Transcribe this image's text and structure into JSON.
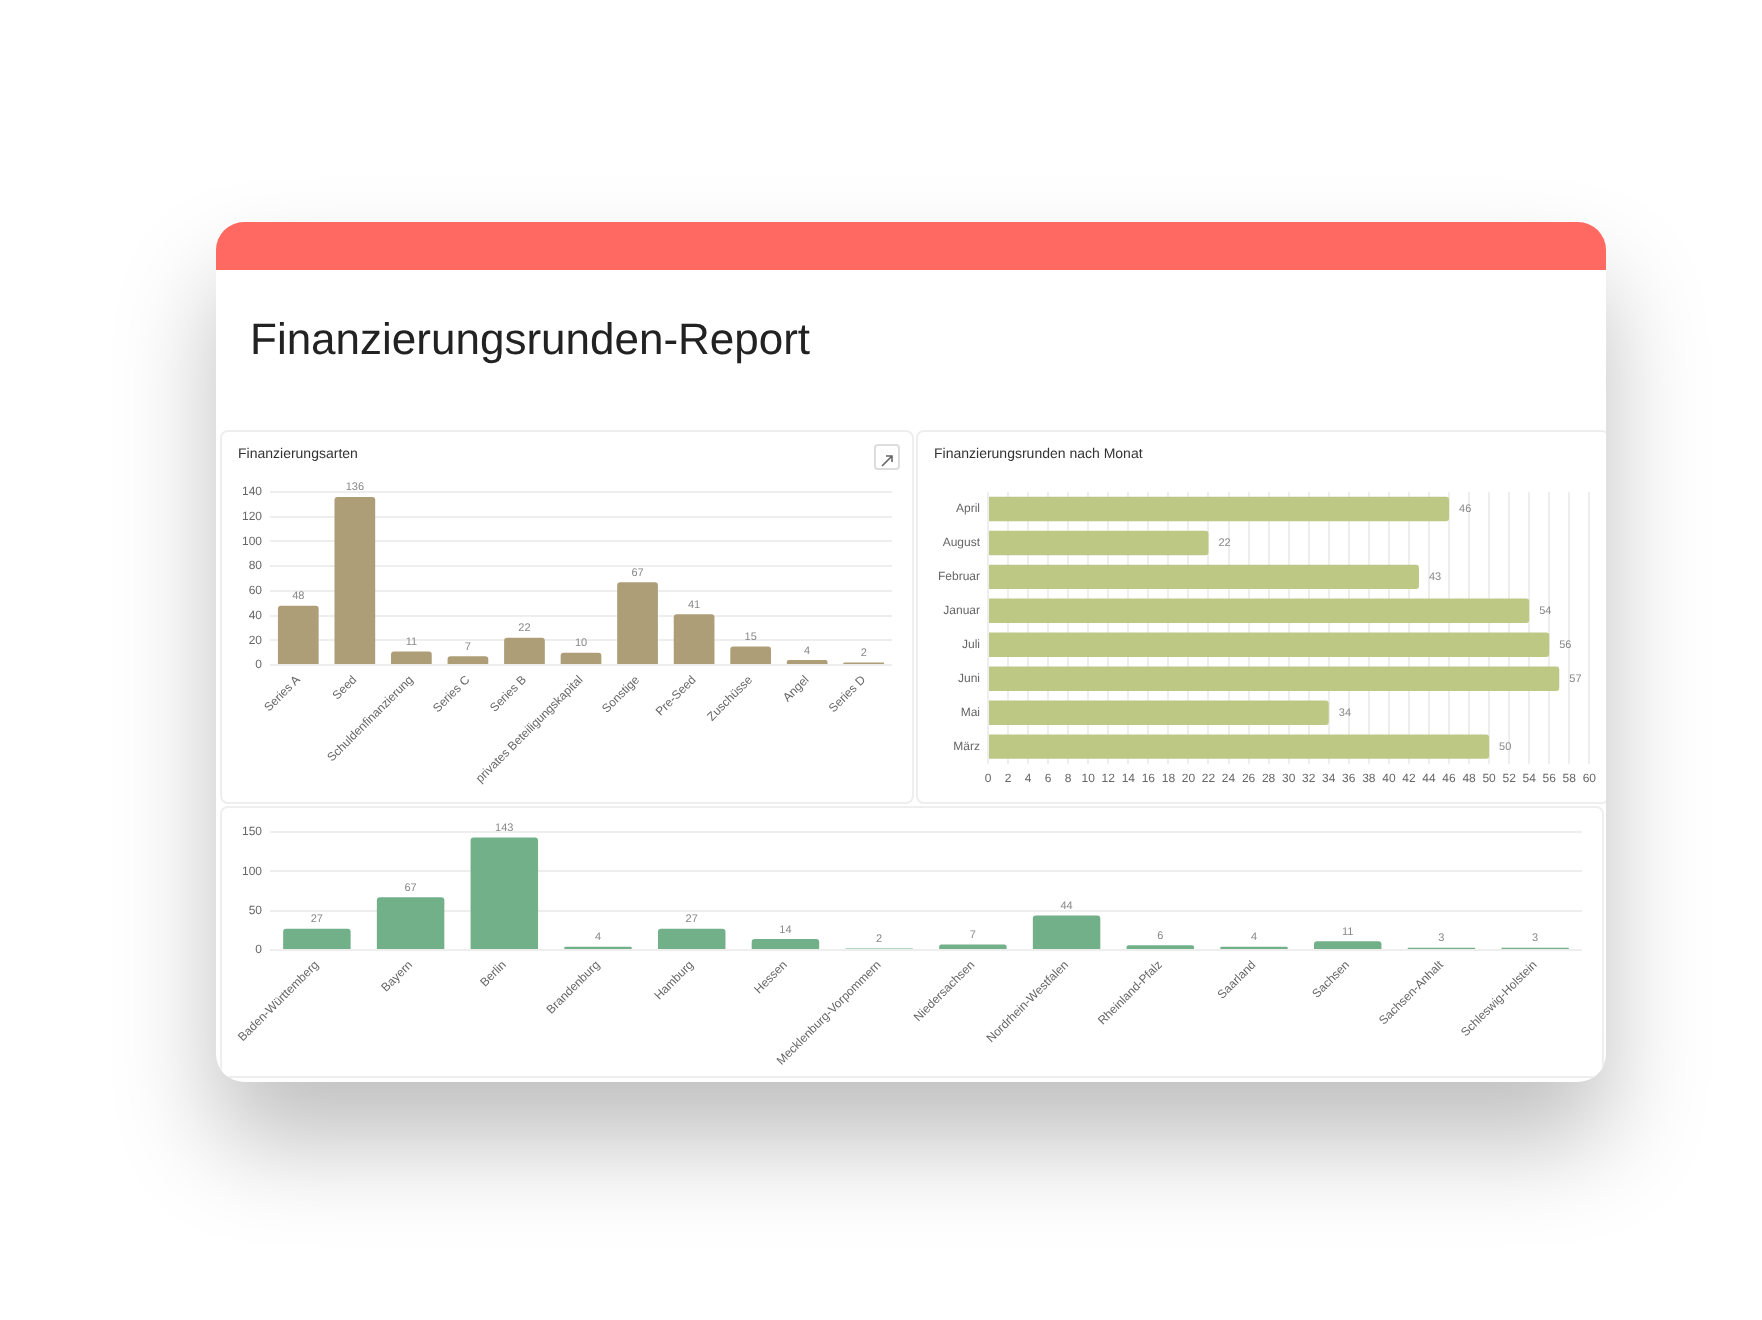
{
  "chart_data": [
    {
      "type": "other",
      "title": "Finanzierungsrunden-Report"
    },
    {
      "type": "bar",
      "title": "Finanzierungsarten",
      "categories": [
        "Series A",
        "Seed",
        "Schuldenfinanzierung",
        "Series C",
        "Series B",
        "privates Beteiligungskapital",
        "Sonstige",
        "Pre-Seed",
        "Zuschüsse",
        "Angel",
        "Series D"
      ],
      "values": [
        48,
        136,
        11,
        7,
        22,
        10,
        67,
        41,
        15,
        4,
        2
      ],
      "color": "#ae9e78",
      "ylim": [
        0,
        140
      ],
      "yticks": [
        0,
        20,
        40,
        60,
        80,
        100,
        120,
        140
      ],
      "grid": "y",
      "data_labels": true
    },
    {
      "type": "bar",
      "title": "Finanzierungsrunden nach Monat",
      "orientation": "horizontal",
      "categories": [
        "April",
        "August",
        "Februar",
        "Januar",
        "Juli",
        "Juni",
        "Mai",
        "März"
      ],
      "values": [
        46,
        22,
        43,
        54,
        56,
        57,
        34,
        50
      ],
      "color": "#bdc885",
      "xlim": [
        0,
        60
      ],
      "xticks": [
        0,
        2,
        4,
        6,
        8,
        10,
        12,
        14,
        16,
        18,
        20,
        22,
        24,
        26,
        28,
        30,
        32,
        34,
        36,
        38,
        40,
        42,
        44,
        46,
        48,
        50,
        52,
        54,
        56,
        58,
        60
      ],
      "grid": "x",
      "data_labels": true
    },
    {
      "type": "bar",
      "categories": [
        "Baden-Württemberg",
        "Bayern",
        "Berlin",
        "Brandenburg",
        "Hamburg",
        "Hessen",
        "Mecklenburg-Vorpommern",
        "Niedersachsen",
        "Nordrhein-Westfalen",
        "Rheinland-Pfalz",
        "Saarland",
        "Sachsen",
        "Sachsen-Anhalt",
        "Schleswig-Holstein"
      ],
      "values": [
        27,
        67,
        143,
        4,
        27,
        14,
        2,
        7,
        44,
        6,
        4,
        11,
        3,
        3
      ],
      "color": "#72b08a",
      "ylim": [
        0,
        150
      ],
      "yticks": [
        0,
        50,
        100,
        150
      ],
      "grid": "y",
      "data_labels": true
    }
  ]
}
